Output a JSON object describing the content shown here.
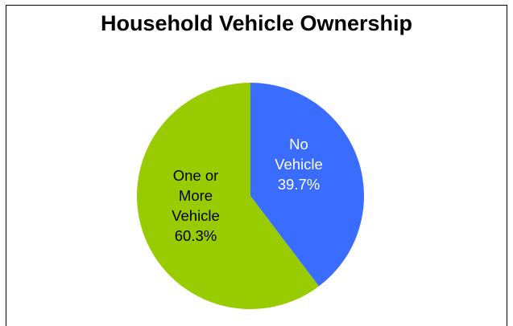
{
  "chart_data": {
    "type": "pie",
    "title": "Household Vehicle Ownership",
    "slices": [
      {
        "label_lines": [
          "No",
          "Vehicle"
        ],
        "value": 39.7,
        "value_text": "39.7%",
        "color": "#3A6CFF",
        "text_color": "#FFFFFF"
      },
      {
        "label_lines": [
          "One or",
          "More",
          "Vehicle"
        ],
        "value": 60.3,
        "value_text": "60.3%",
        "color": "#99CC00",
        "text_color": "#000000"
      }
    ],
    "legend": "none"
  }
}
